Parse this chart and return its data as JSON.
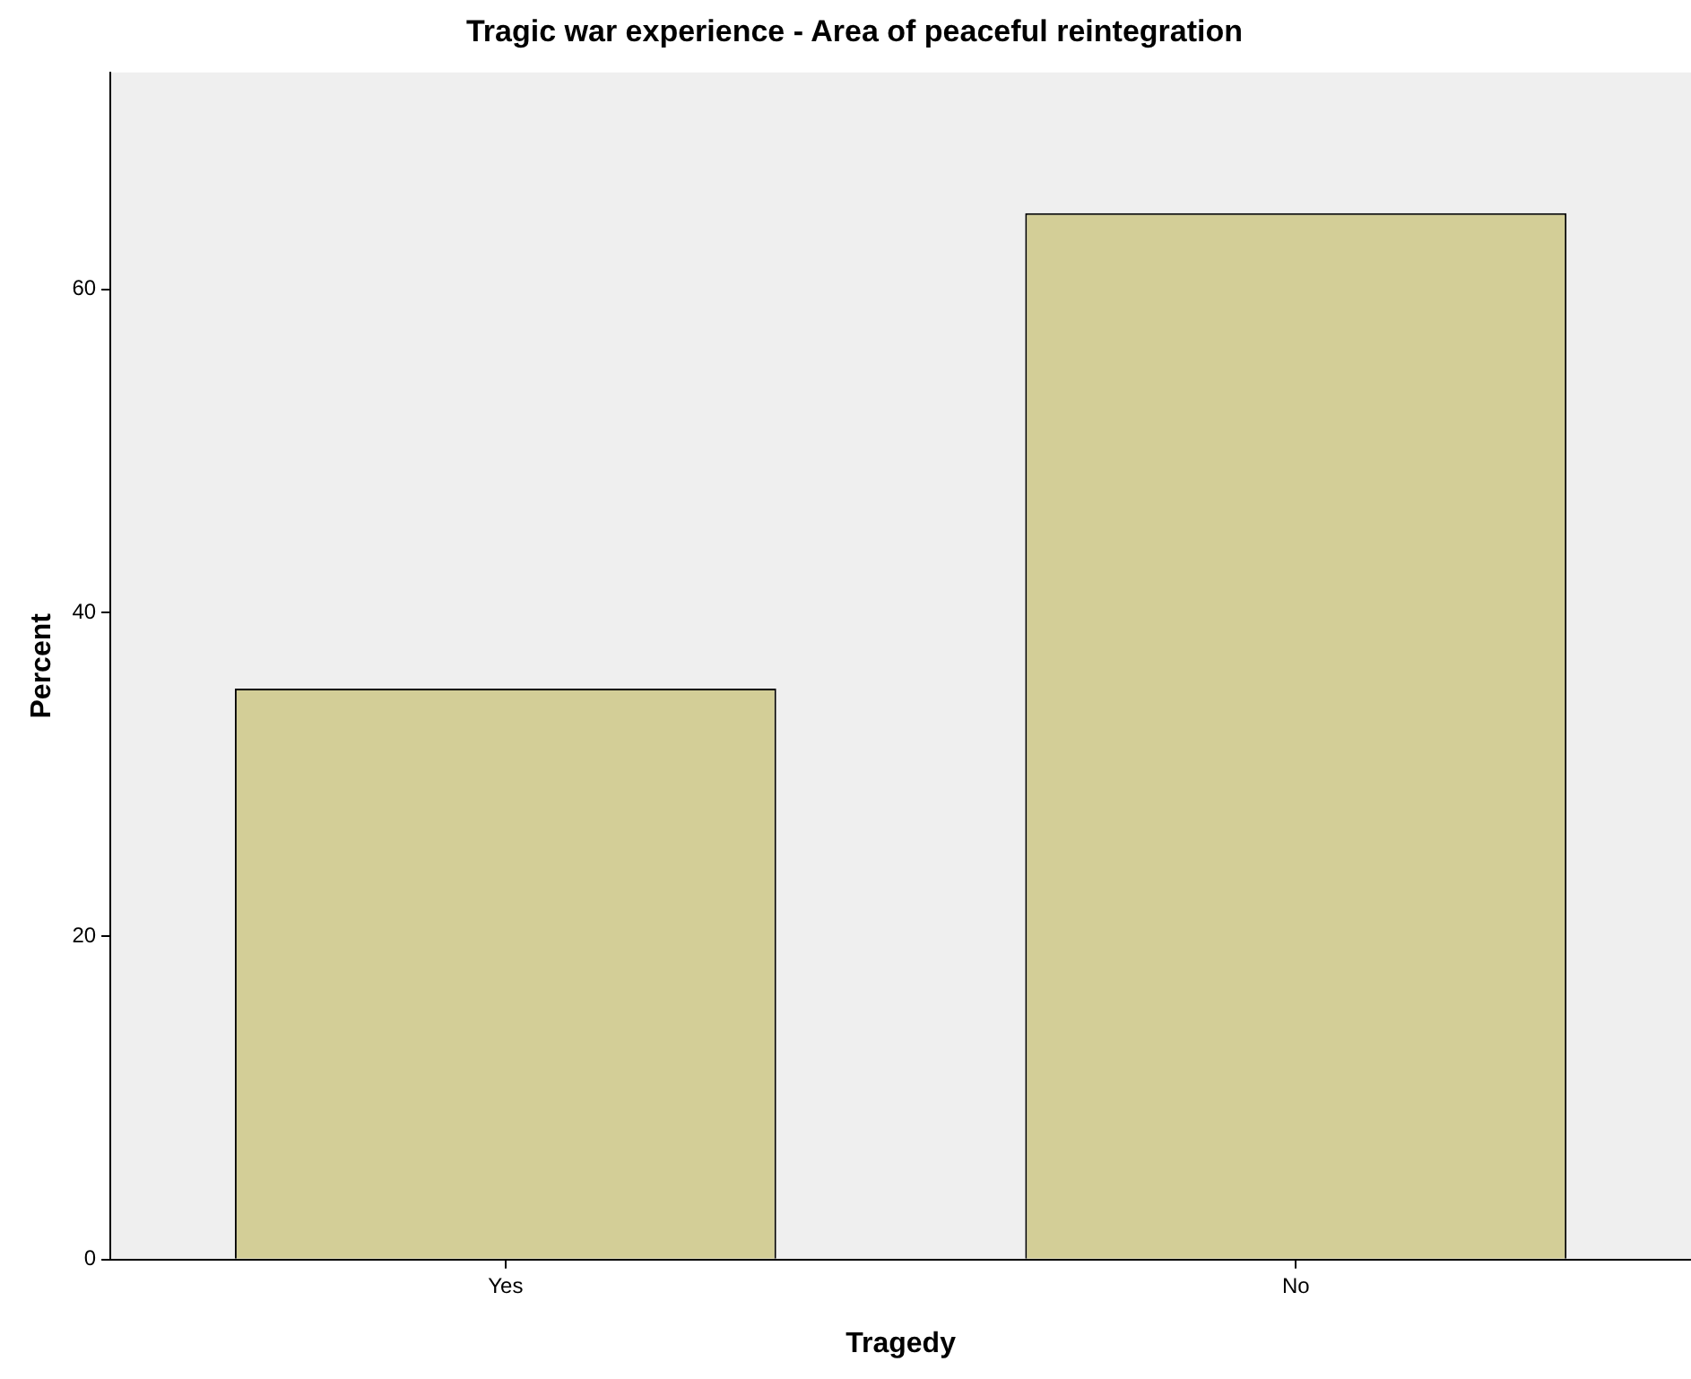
{
  "chart_data": {
    "type": "bar",
    "title": "Tragic war experience - Area of peaceful reintegration",
    "xlabel": "Tragedy",
    "ylabel": "Percent",
    "categories": [
      "Yes",
      "No"
    ],
    "values": [
      35.3,
      64.7
    ],
    "color": "#d3ce97",
    "ylim": [
      0,
      73.4
    ],
    "yticks": [
      0,
      20,
      40,
      60
    ],
    "grid": false,
    "legend": false
  }
}
